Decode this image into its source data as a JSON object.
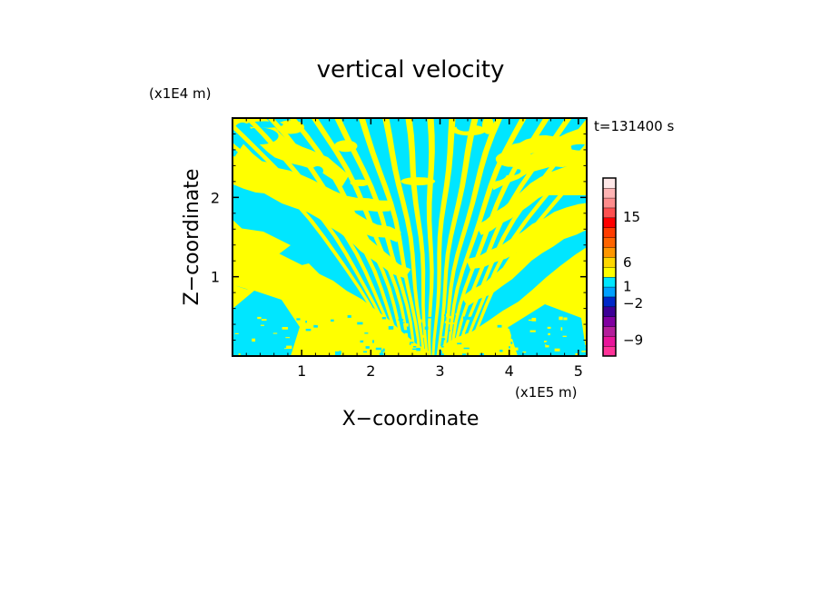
{
  "chart_data": {
    "type": "heatmap",
    "title": "vertical velocity",
    "time_label": "t=131400 s",
    "xlabel": "X−coordinate",
    "ylabel": "Z−coordinate",
    "x_scale_label": "(x1E5 m)",
    "y_scale_label": "(x1E4 m)",
    "xlim": [
      0,
      5.12
    ],
    "ylim": [
      0,
      3.0
    ],
    "x_ticks": [
      1,
      2,
      3,
      4,
      5
    ],
    "x_tick_labels": [
      "1",
      "2",
      "3",
      "4",
      "5"
    ],
    "y_ticks": [
      1,
      2
    ],
    "y_tick_labels": [
      "1",
      "2"
    ],
    "field_colors": {
      "positive": "#ffff00",
      "negative": "#00e6ff"
    },
    "colorbar": {
      "tick_labels": [
        {
          "value": 15,
          "label": "15"
        },
        {
          "value": 6,
          "label": "6"
        },
        {
          "value": 1,
          "label": "1"
        },
        {
          "value": -2,
          "label": "−2"
        },
        {
          "value": -9,
          "label": "−9"
        }
      ],
      "bands": [
        {
          "color": "#ff3399"
        },
        {
          "color": "#e8159a"
        },
        {
          "color": "#b41e9b"
        },
        {
          "color": "#8000a0"
        },
        {
          "color": "#3c0096"
        },
        {
          "color": "#0028c8"
        },
        {
          "color": "#00a0ff"
        },
        {
          "color": "#00e6ff"
        },
        {
          "color": "#ffff00"
        },
        {
          "color": "#ffd700"
        },
        {
          "color": "#ff9600"
        },
        {
          "color": "#ff6400"
        },
        {
          "color": "#ff3c00"
        },
        {
          "color": "#ff0000"
        },
        {
          "color": "#ff5050"
        },
        {
          "color": "#ff8c8c"
        },
        {
          "color": "#ffb4b4"
        },
        {
          "color": "#ffe8e8"
        }
      ]
    }
  }
}
